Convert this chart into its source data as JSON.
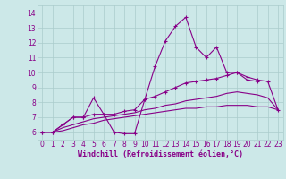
{
  "title": "",
  "xlabel": "Windchill (Refroidissement éolien,°C)",
  "ylabel": "",
  "background_color": "#cce8e8",
  "line_color": "#880088",
  "x_values": [
    0,
    1,
    2,
    3,
    4,
    5,
    6,
    7,
    8,
    9,
    10,
    11,
    12,
    13,
    14,
    15,
    16,
    17,
    18,
    19,
    20,
    21,
    22,
    23
  ],
  "line1_y": [
    6.0,
    6.0,
    6.5,
    7.0,
    7.0,
    8.3,
    7.2,
    6.0,
    5.9,
    5.9,
    8.2,
    10.4,
    12.1,
    13.1,
    13.7,
    11.7,
    11.0,
    11.7,
    10.0,
    10.0,
    9.5,
    9.4,
    null,
    null
  ],
  "line2_y": [
    6.0,
    6.0,
    6.5,
    7.0,
    7.0,
    7.2,
    7.2,
    7.2,
    7.4,
    7.5,
    8.2,
    8.4,
    8.7,
    9.0,
    9.3,
    9.4,
    9.5,
    9.6,
    9.8,
    10.0,
    9.7,
    9.5,
    9.4,
    7.5
  ],
  "line3_y": [
    6.0,
    6.0,
    6.3,
    6.5,
    6.7,
    6.9,
    7.0,
    7.1,
    7.2,
    7.3,
    7.5,
    7.6,
    7.8,
    7.9,
    8.1,
    8.2,
    8.3,
    8.4,
    8.6,
    8.7,
    8.6,
    8.5,
    8.3,
    7.5
  ],
  "line4_y": [
    6.0,
    6.0,
    6.1,
    6.3,
    6.5,
    6.6,
    6.8,
    6.9,
    7.0,
    7.1,
    7.2,
    7.3,
    7.4,
    7.5,
    7.6,
    7.6,
    7.7,
    7.7,
    7.8,
    7.8,
    7.8,
    7.7,
    7.7,
    7.5
  ],
  "xlim": [
    -0.5,
    23.5
  ],
  "ylim": [
    5.5,
    14.5
  ],
  "yticks": [
    6,
    7,
    8,
    9,
    10,
    11,
    12,
    13,
    14
  ],
  "xticks": [
    0,
    1,
    2,
    3,
    4,
    5,
    6,
    7,
    8,
    9,
    10,
    11,
    12,
    13,
    14,
    15,
    16,
    17,
    18,
    19,
    20,
    21,
    22,
    23
  ],
  "grid_color": "#aacccc",
  "font_color": "#880088",
  "tick_fontsize": 5.5,
  "xlabel_fontsize": 6.0
}
